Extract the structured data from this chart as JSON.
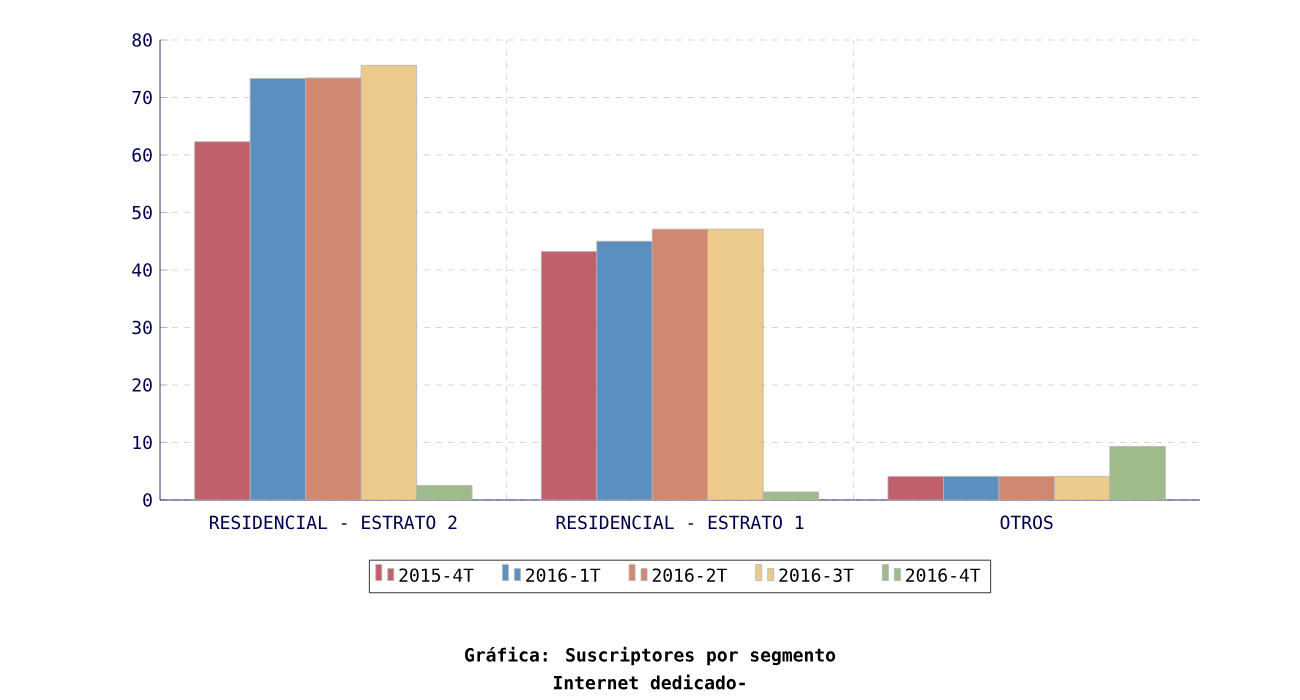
{
  "chart_data": {
    "type": "bar",
    "title": "Gráfica: Suscriptores por segmento",
    "subtitle": "Internet dedicado-",
    "categories": [
      "RESIDENCIAL - ESTRATO 2",
      "RESIDENCIAL - ESTRATO 1",
      "OTROS"
    ],
    "series": [
      {
        "name": "2015-4T",
        "color": "#c0606a",
        "values": [
          62.3,
          43.2,
          4.1
        ]
      },
      {
        "name": "2016-1T",
        "color": "#5b8fc0",
        "values": [
          73.3,
          45.0,
          4.1
        ]
      },
      {
        "name": "2016-2T",
        "color": "#d08870",
        "values": [
          73.4,
          47.1,
          4.1
        ]
      },
      {
        "name": "2016-3T",
        "color": "#ecca8c",
        "values": [
          75.6,
          47.1,
          4.1
        ]
      },
      {
        "name": "2016-4T",
        "color": "#a0bb8a",
        "values": [
          2.5,
          1.4,
          9.3
        ]
      }
    ],
    "ylim": [
      0,
      80
    ],
    "yticks": [
      0,
      10,
      20,
      30,
      40,
      50,
      60,
      70,
      80
    ],
    "grid": true,
    "legend": "bottom"
  }
}
